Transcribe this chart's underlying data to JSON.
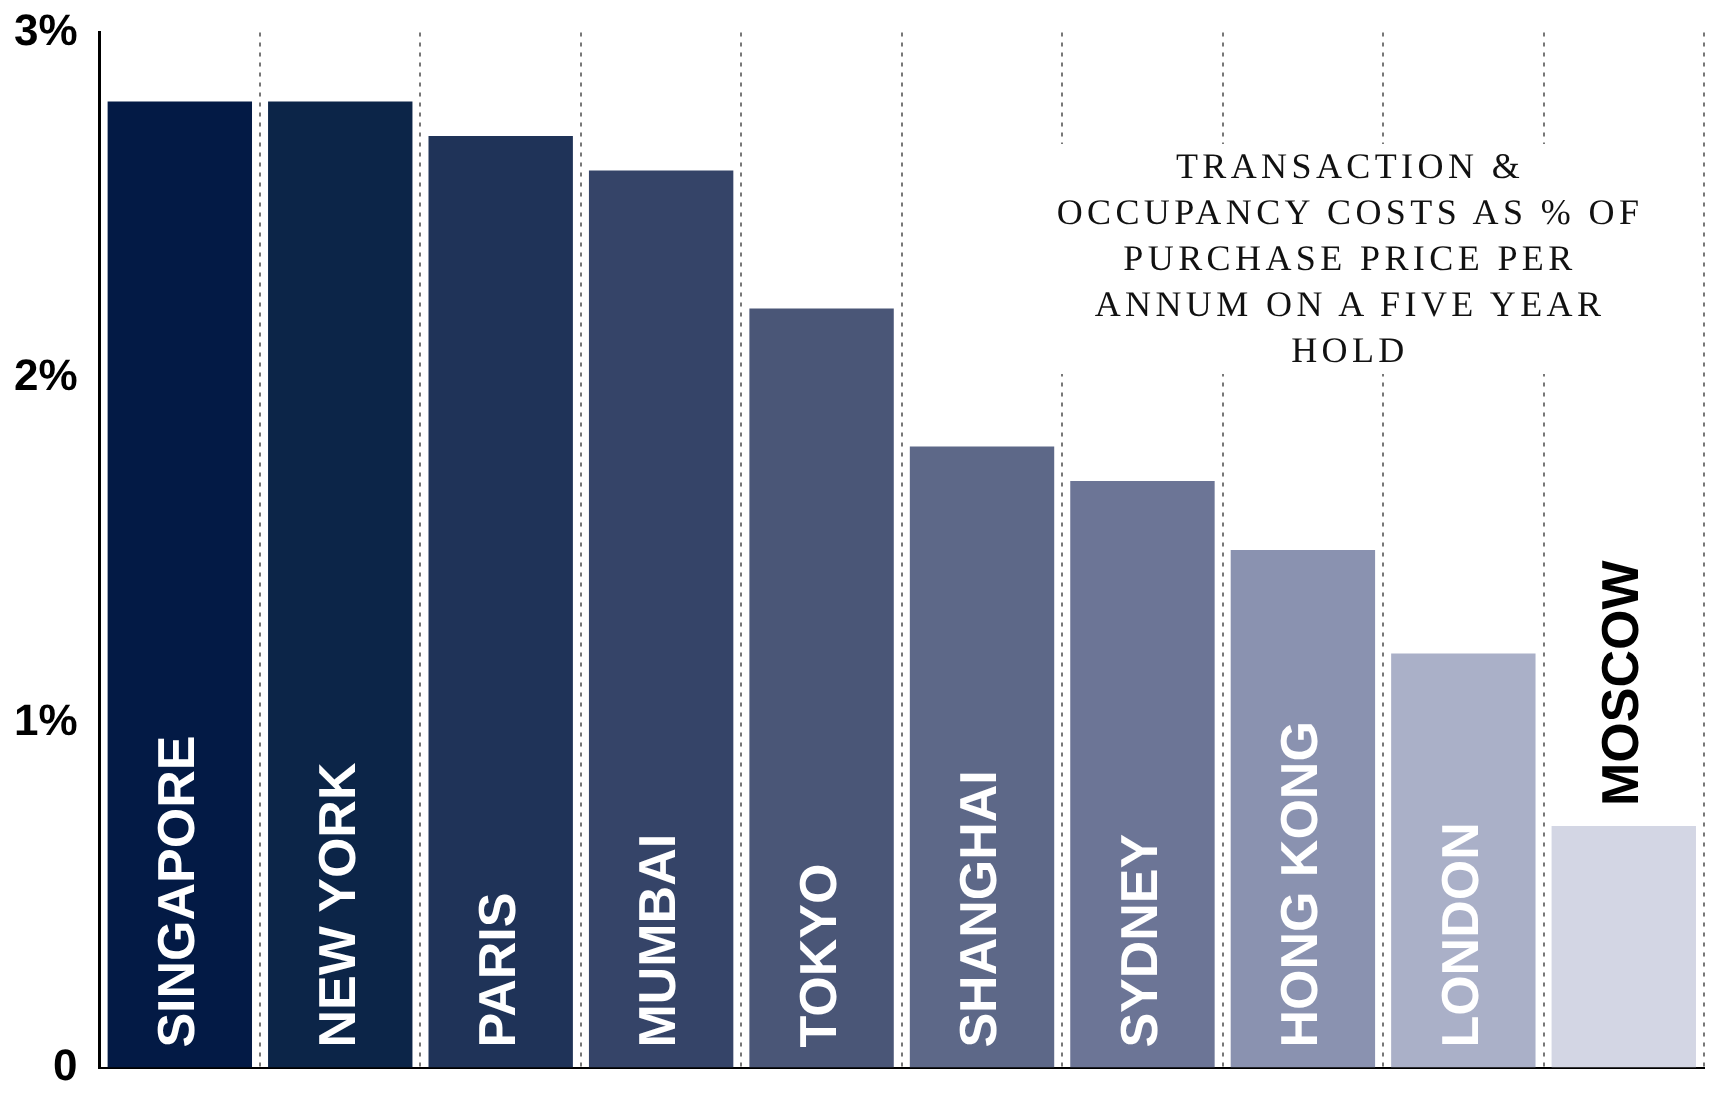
{
  "chart_data": {
    "type": "bar",
    "title": "TRANSACTION & OCCUPANCY COSTS AS % OF PURCHASE PRICE PER ANNUM ON A FIVE YEAR HOLD",
    "categories": [
      "SINGAPORE",
      "NEW YORK",
      "PARIS",
      "MUMBAI",
      "TOKYO",
      "SHANGHAI",
      "SYDNEY",
      "HONG KONG",
      "LONDON",
      "MOSCOW"
    ],
    "values": [
      2.8,
      2.8,
      2.7,
      2.6,
      2.2,
      1.8,
      1.7,
      1.5,
      1.2,
      0.7
    ],
    "colors": [
      "#031a45",
      "#0c2548",
      "#1f3358",
      "#354468",
      "#4a5677",
      "#5d6888",
      "#6c7596",
      "#8a92b0",
      "#aab0c8",
      "#d3d6e4"
    ],
    "ylim": [
      0,
      3
    ],
    "yticks": [
      0,
      {
        "value": 1,
        "label": "1%"
      },
      {
        "value": 2,
        "label": "2%"
      },
      {
        "value": 3,
        "label": "3%"
      }
    ],
    "grid": "x",
    "legend": false
  }
}
